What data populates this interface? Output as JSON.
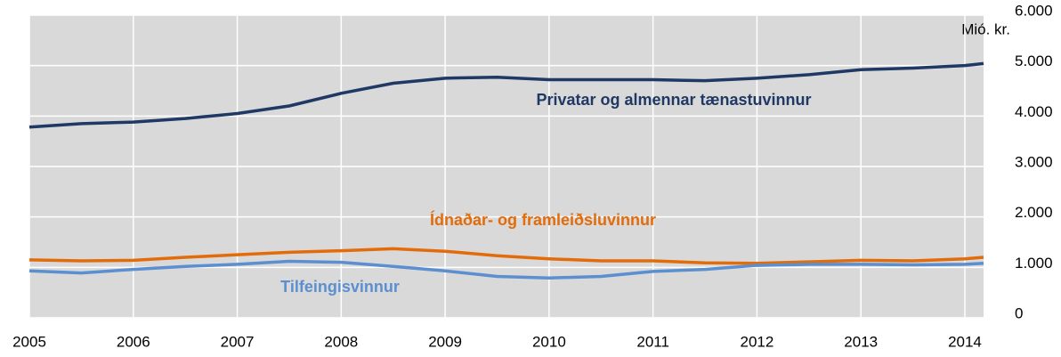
{
  "chart_data": {
    "type": "line",
    "y_label": "Mió. kr.",
    "x": [
      2005,
      2005.5,
      2006,
      2006.5,
      2007,
      2007.5,
      2008,
      2008.5,
      2009,
      2009.5,
      2010,
      2010.5,
      2011,
      2011.5,
      2012,
      2012.5,
      2013,
      2013.5,
      2014,
      2014.18
    ],
    "xlim": [
      2005,
      2014.18
    ],
    "xticks": [
      2005,
      2006,
      2007,
      2008,
      2009,
      2010,
      2011,
      2012,
      2013,
      2014
    ],
    "ylim": [
      0,
      6000
    ],
    "yticks": [
      0,
      {
        "value": 1000,
        "label": "1.000"
      },
      {
        "value": 2000,
        "label": "2.000"
      },
      {
        "value": 3000,
        "label": "3.000"
      },
      {
        "value": 4000,
        "label": "4.000"
      },
      {
        "value": 5000,
        "label": "5.000"
      },
      {
        "value": 6000,
        "label": "6.000"
      }
    ],
    "grid": true,
    "series": [
      {
        "name": "Privatar og almennar tænastuvinnur",
        "color": "#1f3864",
        "values": [
          3780,
          3850,
          3880,
          3950,
          4050,
          4200,
          4450,
          4650,
          4750,
          4770,
          4720,
          4720,
          4720,
          4700,
          4750,
          4820,
          4920,
          4950,
          5000,
          5040
        ]
      },
      {
        "name": "Ídnaðar- og framleiðsluvinnur",
        "color": "#e36c0a",
        "values": [
          1150,
          1130,
          1140,
          1200,
          1250,
          1300,
          1330,
          1370,
          1320,
          1230,
          1170,
          1130,
          1130,
          1090,
          1080,
          1110,
          1140,
          1130,
          1170,
          1200
        ]
      },
      {
        "name": "Tilfeingisvinnur",
        "color": "#5b8fd0",
        "values": [
          930,
          890,
          960,
          1020,
          1060,
          1120,
          1100,
          1020,
          930,
          820,
          790,
          820,
          920,
          960,
          1040,
          1060,
          1060,
          1050,
          1060,
          1080
        ]
      }
    ]
  }
}
